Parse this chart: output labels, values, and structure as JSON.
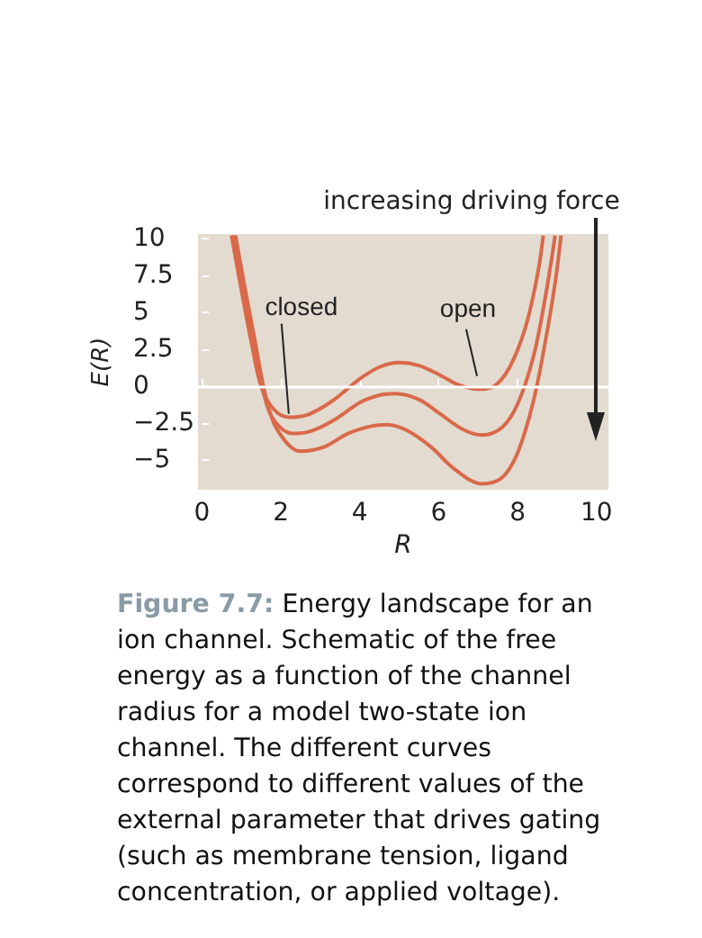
{
  "chart_data": {
    "type": "line",
    "xlabel": "R",
    "ylabel": "E(R)",
    "xlim": [
      -0.1,
      10.3
    ],
    "xticks": [
      0,
      2,
      4,
      6,
      8,
      10
    ],
    "ylim": [
      -7,
      10.3
    ],
    "yticks": [
      {
        "value": -5,
        "label": "−5"
      },
      {
        "value": -2.5,
        "label": "−2.5"
      },
      0,
      2.5,
      5,
      7.5,
      10
    ],
    "grid": false,
    "marker": "none",
    "line_style": "solid",
    "ref_lines": [
      {
        "axis": "y",
        "value": 0,
        "color": "#ffffff"
      }
    ],
    "annotations": [
      {
        "text": "closed",
        "x": 2.2,
        "y": -2.1
      },
      {
        "text": "open",
        "x": 6.97,
        "y": 0.45
      },
      "increasing driving force",
      "Figure 7.7: Energy landscape for an ion channel. Schematic of the free energy as a function of the channel radius for a model two-state ion channel. The different curves correspond to different values of the external parameter that drives gating (such as membrane tension, ligand concentration, or applied voltage)."
    ],
    "series": [
      {
        "color": "#d9694a",
        "x": [
          0.75,
          1.0,
          1.25,
          1.5,
          1.8,
          2.2,
          2.7,
          3.3,
          4,
          4.5,
          5,
          5.5,
          6,
          6.5,
          7,
          7.4,
          7.8,
          8.2,
          8.5,
          8.65
        ],
        "values": [
          10.2,
          6.5,
          3,
          0,
          -1.5,
          -2.1,
          -1.9,
          -1,
          0.5,
          1.3,
          1.6,
          1.4,
          0.8,
          0.1,
          -0.2,
          0,
          1.3,
          4,
          7.5,
          10.2
        ]
      },
      {
        "color": "#d9694a",
        "x": [
          0.8,
          1.05,
          1.3,
          1.55,
          1.8,
          2.3,
          2.8,
          3.4,
          4,
          4.5,
          4.9,
          5.5,
          6,
          6.6,
          7.1,
          7.6,
          8,
          8.4,
          8.7,
          8.95
        ],
        "values": [
          10.2,
          6.5,
          3,
          -0.3,
          -2.2,
          -3.2,
          -3,
          -2.2,
          -1.1,
          -0.6,
          -0.5,
          -0.9,
          -1.8,
          -2.9,
          -3.3,
          -2.8,
          -1.2,
          2,
          6,
          10.2
        ]
      },
      {
        "color": "#d9694a",
        "x": [
          0.85,
          1.1,
          1.35,
          1.6,
          1.9,
          2.5,
          3.1,
          3.7,
          4.3,
          4.7,
          5.2,
          5.8,
          6.4,
          7.1,
          7.6,
          8,
          8.4,
          8.7,
          8.95,
          9.1
        ],
        "values": [
          10.2,
          6.5,
          3,
          -0.5,
          -2.9,
          -4.4,
          -4.1,
          -3.2,
          -2.7,
          -2.6,
          -3,
          -4.1,
          -5.6,
          -6.6,
          -6.2,
          -4.5,
          -1,
          3,
          7,
          10.2
        ]
      }
    ]
  }
}
